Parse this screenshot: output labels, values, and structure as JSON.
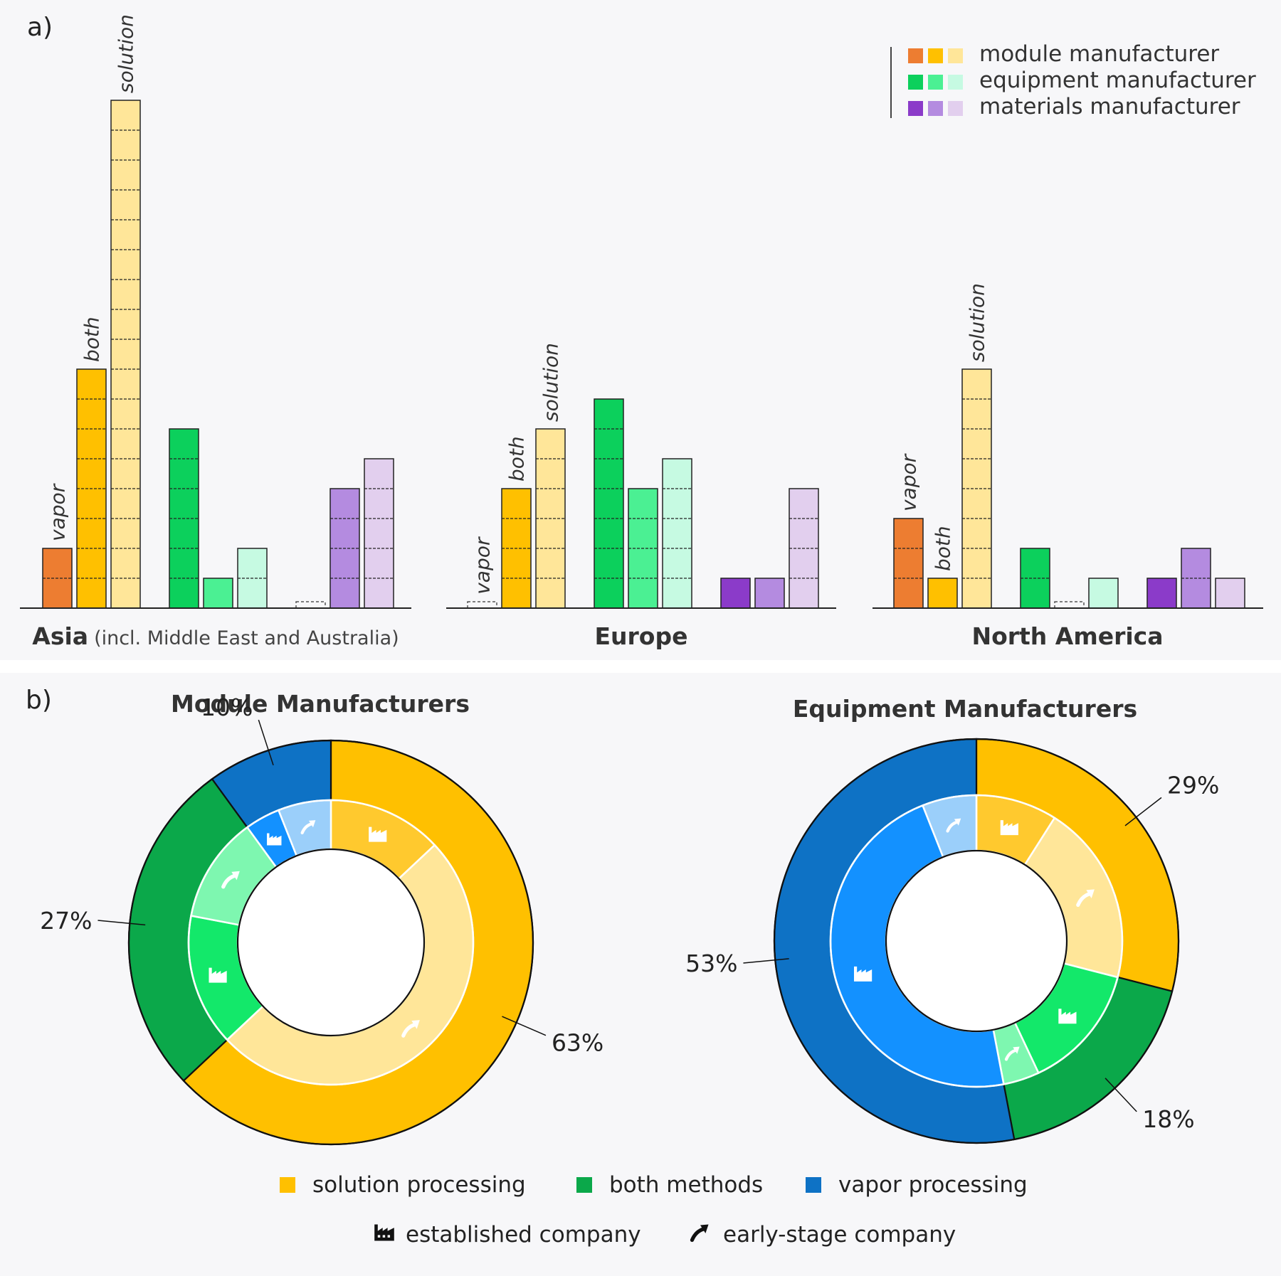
{
  "panel_a": {
    "label": "a)",
    "legend": [
      {
        "text": "module manufacturer",
        "colors": [
          "#ED7D31",
          "#FFC000",
          "#FFE699"
        ]
      },
      {
        "text": "equipment manufacturer",
        "colors": [
          "#0CD05C",
          "#4BF093",
          "#C6FAE2"
        ]
      },
      {
        "text": "materials manufacturer",
        "colors": [
          "#8B3BC9",
          "#B48BE0",
          "#E2CFEE"
        ]
      }
    ],
    "regions": [
      {
        "name": "Asia",
        "sub": "(incl. Middle East and Australia)"
      },
      {
        "name": "Europe",
        "sub": ""
      },
      {
        "name": "North America",
        "sub": ""
      }
    ]
  },
  "chart_data": [
    {
      "type": "bar",
      "title": "",
      "categories": [
        "Asia (incl. Middle East and Australia)",
        "Europe",
        "North America"
      ],
      "method_labels": [
        "vapor",
        "both",
        "solution"
      ],
      "series": [
        {
          "name": "module manufacturer",
          "vapor": [
            2,
            0,
            3
          ],
          "both": [
            8,
            4,
            1
          ],
          "solution": [
            17,
            6,
            8
          ]
        },
        {
          "name": "equipment manufacturer",
          "vapor": [
            6,
            7,
            2
          ],
          "both": [
            1,
            4,
            0
          ],
          "solution": [
            2,
            5,
            1
          ]
        },
        {
          "name": "materials manufacturer",
          "vapor": [
            0,
            1,
            1
          ],
          "both": [
            4,
            1,
            2
          ],
          "solution": [
            5,
            4,
            1
          ]
        }
      ],
      "colors": {
        "module manufacturer": [
          "#ED7D31",
          "#FFC000",
          "#FFE699"
        ],
        "equipment manufacturer": [
          "#0CD05C",
          "#4BF093",
          "#C6FAE2"
        ],
        "materials manufacturer": [
          "#8B3BC9",
          "#B48BE0",
          "#E2CFEE"
        ]
      },
      "zero_bars_drawn_dashed": true
    },
    {
      "type": "pie",
      "title": "Module Manufacturers",
      "outer": [
        {
          "name": "solution processing",
          "value": 63,
          "label": "63%"
        },
        {
          "name": "both methods",
          "value": 27,
          "label": "27%"
        },
        {
          "name": "vapor processing",
          "value": 10,
          "label": "10%"
        }
      ],
      "inner": [
        {
          "group": "solution processing",
          "kind": "established company",
          "value": 13
        },
        {
          "group": "solution processing",
          "kind": "early-stage company",
          "value": 50
        },
        {
          "group": "both methods",
          "kind": "established company",
          "value": 15
        },
        {
          "group": "both methods",
          "kind": "early-stage company",
          "value": 12
        },
        {
          "group": "vapor processing",
          "kind": "established company",
          "value": 4
        },
        {
          "group": "vapor processing",
          "kind": "early-stage company",
          "value": 6
        }
      ]
    },
    {
      "type": "pie",
      "title": "Equipment Manufacturers",
      "outer": [
        {
          "name": "solution processing",
          "value": 29,
          "label": "29%"
        },
        {
          "name": "both methods",
          "value": 18,
          "label": "18%"
        },
        {
          "name": "vapor processing",
          "value": 53,
          "label": "53%"
        }
      ],
      "inner": [
        {
          "group": "solution processing",
          "kind": "established company",
          "value": 9
        },
        {
          "group": "solution processing",
          "kind": "early-stage company",
          "value": 20
        },
        {
          "group": "both methods",
          "kind": "established company",
          "value": 14
        },
        {
          "group": "both methods",
          "kind": "early-stage company",
          "value": 4
        },
        {
          "group": "vapor processing",
          "kind": "established company",
          "value": 47
        },
        {
          "group": "vapor processing",
          "kind": "early-stage company",
          "value": 6
        }
      ]
    }
  ],
  "panel_b": {
    "label": "b)",
    "colors": {
      "solution processing": [
        "#FFC000",
        "#FFC92E",
        "#FFE699"
      ],
      "both methods": [
        "#0BA84A",
        "#13E86A",
        "#7EF7B0"
      ],
      "vapor processing": [
        "#0E72C5",
        "#1391FF",
        "#9BCFFA"
      ]
    },
    "legend_groups": [
      {
        "text": "solution processing",
        "color": "#FFC000"
      },
      {
        "text": "both methods",
        "color": "#0BA84A"
      },
      {
        "text": "vapor processing",
        "color": "#0E72C5"
      }
    ],
    "legend_kinds": [
      {
        "text": "established company",
        "icon": "factory-icon"
      },
      {
        "text": "early-stage company",
        "icon": "rising-arrow-icon"
      }
    ]
  }
}
